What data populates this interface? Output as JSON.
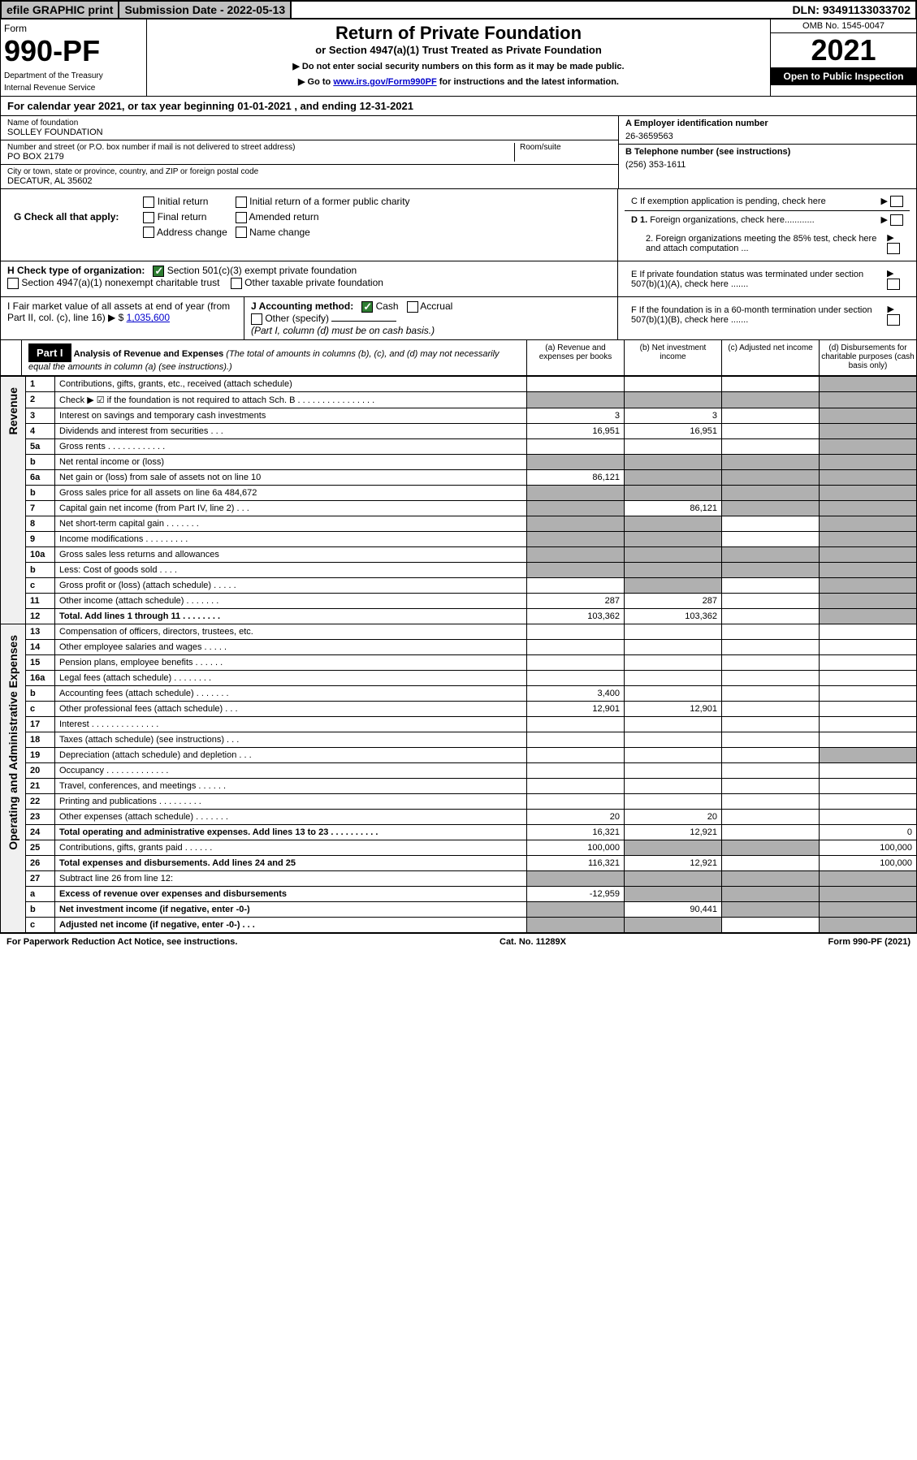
{
  "top": {
    "efile": "efile GRAPHIC print",
    "submission_label": "Submission Date - 2022-05-13",
    "dln": "DLN: 93491133033702"
  },
  "header": {
    "form_label": "Form",
    "form_number": "990-PF",
    "dept1": "Department of the Treasury",
    "dept2": "Internal Revenue Service",
    "title": "Return of Private Foundation",
    "subtitle": "or Section 4947(a)(1) Trust Treated as Private Foundation",
    "note1": "▶ Do not enter social security numbers on this form as it may be made public.",
    "note2_pre": "▶ Go to ",
    "note2_link": "www.irs.gov/Form990PF",
    "note2_post": " for instructions and the latest information.",
    "omb": "OMB No. 1545-0047",
    "year": "2021",
    "inspect": "Open to Public Inspection"
  },
  "cal_year": "For calendar year 2021, or tax year beginning 01-01-2021                    , and ending 12-31-2021",
  "info": {
    "name_lbl": "Name of foundation",
    "name_val": "SOLLEY FOUNDATION",
    "addr_lbl": "Number and street (or P.O. box number if mail is not delivered to street address)",
    "addr_val": "PO BOX 2179",
    "room_lbl": "Room/suite",
    "city_lbl": "City or town, state or province, country, and ZIP or foreign postal code",
    "city_val": "DECATUR, AL  35602",
    "A_lbl": "A Employer identification number",
    "A_val": "26-3659563",
    "B_lbl": "B Telephone number (see instructions)",
    "B_val": "(256) 353-1611",
    "C_lbl": "C If exemption application is pending, check here",
    "D1_lbl": "D 1. Foreign organizations, check here............",
    "D2_lbl": "2. Foreign organizations meeting the 85% test, check here and attach computation ...",
    "E_lbl": "E  If private foundation status was terminated under section 507(b)(1)(A), check here .......",
    "F_lbl": "F  If the foundation is in a 60-month termination under section 507(b)(1)(B), check here ......."
  },
  "G": {
    "label": "G Check all that apply:",
    "opts": [
      "Initial return",
      "Final return",
      "Address change",
      "Initial return of a former public charity",
      "Amended return",
      "Name change"
    ]
  },
  "H": {
    "label": "H Check type of organization:",
    "opt1": "Section 501(c)(3) exempt private foundation",
    "opt2": "Section 4947(a)(1) nonexempt charitable trust",
    "opt3": "Other taxable private foundation"
  },
  "I": {
    "label": "I Fair market value of all assets at end of year (from Part II, col. (c), line 16)",
    "val": "1,035,600"
  },
  "J": {
    "label": "J Accounting method:",
    "cash": "Cash",
    "accrual": "Accrual",
    "other": "Other (specify)",
    "note": "(Part I, column (d) must be on cash basis.)"
  },
  "part1": {
    "label": "Part I",
    "title": "Analysis of Revenue and Expenses",
    "sub": " (The total of amounts in columns (b), (c), and (d) may not necessarily equal the amounts in column (a) (see instructions).)",
    "col_a": "(a)   Revenue and expenses per books",
    "col_b": "(b)   Net investment income",
    "col_c": "(c)   Adjusted net income",
    "col_d": "(d)   Disbursements for charitable purposes (cash basis only)"
  },
  "side_labels": {
    "revenue": "Revenue",
    "expenses": "Operating and Administrative Expenses"
  },
  "rows": [
    {
      "n": "1",
      "d": "Contributions, gifts, grants, etc., received (attach schedule)",
      "a": "",
      "b": "",
      "c": "",
      "dd": "",
      "shade_d": true
    },
    {
      "n": "2",
      "d": "Check ▶ ☑ if the foundation is not required to attach Sch. B     .  .  .  .  .  .  .  .  .  .  .  .  .  .  .  .",
      "a": "",
      "b": "",
      "c": "",
      "dd": "",
      "shade_all": true
    },
    {
      "n": "3",
      "d": "Interest on savings and temporary cash investments",
      "a": "3",
      "b": "3",
      "c": "",
      "dd": "",
      "shade_d": true
    },
    {
      "n": "4",
      "d": "Dividends and interest from securities    .   .   .",
      "a": "16,951",
      "b": "16,951",
      "c": "",
      "dd": "",
      "shade_d": true
    },
    {
      "n": "5a",
      "d": "Gross rents    .   .   .   .   .   .   .   .   .   .   .   .",
      "a": "",
      "b": "",
      "c": "",
      "dd": "",
      "shade_d": true
    },
    {
      "n": "b",
      "d": "Net rental income or (loss)",
      "a": "",
      "b": "",
      "c": "",
      "dd": "",
      "shade_all": true
    },
    {
      "n": "6a",
      "d": "Net gain or (loss) from sale of assets not on line 10",
      "a": "86,121",
      "b": "",
      "c": "",
      "dd": "",
      "shade_bcd": true
    },
    {
      "n": "b",
      "d": "Gross sales price for all assets on line 6a              484,672",
      "a": "",
      "b": "",
      "c": "",
      "dd": "",
      "shade_all": true
    },
    {
      "n": "7",
      "d": "Capital gain net income (from Part IV, line 2)    .   .   .",
      "a": "",
      "b": "86,121",
      "c": "",
      "dd": "",
      "shade_a": true,
      "shade_cd": true
    },
    {
      "n": "8",
      "d": "Net short-term capital gain    .   .   .   .   .   .   .",
      "a": "",
      "b": "",
      "c": "",
      "dd": "",
      "shade_ab": true,
      "shade_d": true
    },
    {
      "n": "9",
      "d": "Income modifications  .   .   .   .   .   .   .   .   .",
      "a": "",
      "b": "",
      "c": "",
      "dd": "",
      "shade_ab": true,
      "shade_d": true
    },
    {
      "n": "10a",
      "d": "Gross sales less returns and allowances",
      "a": "",
      "b": "",
      "c": "",
      "dd": "",
      "shade_all": true
    },
    {
      "n": "b",
      "d": "Less: Cost of goods sold    .   .   .   .",
      "a": "",
      "b": "",
      "c": "",
      "dd": "",
      "shade_all": true
    },
    {
      "n": "c",
      "d": "Gross profit or (loss) (attach schedule)    .   .   .   .   .",
      "a": "",
      "b": "",
      "c": "",
      "dd": "",
      "shade_b": true,
      "shade_d": true
    },
    {
      "n": "11",
      "d": "Other income (attach schedule)    .   .   .   .   .   .   .",
      "a": "287",
      "b": "287",
      "c": "",
      "dd": "",
      "shade_d": true
    },
    {
      "n": "12",
      "d": "Total. Add lines 1 through 11    .   .   .   .   .   .   .   .",
      "a": "103,362",
      "b": "103,362",
      "c": "",
      "dd": "",
      "bold": true,
      "shade_d": true
    },
    {
      "n": "13",
      "d": "Compensation of officers, directors, trustees, etc.",
      "a": "",
      "b": "",
      "c": "",
      "dd": "",
      "sec": "exp"
    },
    {
      "n": "14",
      "d": "Other employee salaries and wages    .   .   .   .   .",
      "a": "",
      "b": "",
      "c": "",
      "dd": ""
    },
    {
      "n": "15",
      "d": "Pension plans, employee benefits  .   .   .   .   .   .",
      "a": "",
      "b": "",
      "c": "",
      "dd": ""
    },
    {
      "n": "16a",
      "d": "Legal fees (attach schedule)  .   .   .   .   .   .   .   .",
      "a": "",
      "b": "",
      "c": "",
      "dd": ""
    },
    {
      "n": "b",
      "d": "Accounting fees (attach schedule)  .   .   .   .   .   .   .",
      "a": "3,400",
      "b": "",
      "c": "",
      "dd": ""
    },
    {
      "n": "c",
      "d": "Other professional fees (attach schedule)     .   .   .",
      "a": "12,901",
      "b": "12,901",
      "c": "",
      "dd": ""
    },
    {
      "n": "17",
      "d": "Interest  .   .   .   .   .   .   .   .   .   .   .   .   .   .",
      "a": "",
      "b": "",
      "c": "",
      "dd": ""
    },
    {
      "n": "18",
      "d": "Taxes (attach schedule) (see instructions)      .   .   .",
      "a": "",
      "b": "",
      "c": "",
      "dd": ""
    },
    {
      "n": "19",
      "d": "Depreciation (attach schedule) and depletion    .   .   .",
      "a": "",
      "b": "",
      "c": "",
      "dd": "",
      "shade_d": true
    },
    {
      "n": "20",
      "d": "Occupancy  .   .   .   .   .   .   .   .   .   .   .   .   .",
      "a": "",
      "b": "",
      "c": "",
      "dd": ""
    },
    {
      "n": "21",
      "d": "Travel, conferences, and meetings  .   .   .   .   .   .",
      "a": "",
      "b": "",
      "c": "",
      "dd": ""
    },
    {
      "n": "22",
      "d": "Printing and publications  .   .   .   .   .   .   .   .   .",
      "a": "",
      "b": "",
      "c": "",
      "dd": ""
    },
    {
      "n": "23",
      "d": "Other expenses (attach schedule)  .   .   .   .   .   .   .",
      "a": "20",
      "b": "20",
      "c": "",
      "dd": ""
    },
    {
      "n": "24",
      "d": "Total operating and administrative expenses. Add lines 13 to 23    .   .   .   .   .   .   .   .   .   .",
      "a": "16,321",
      "b": "12,921",
      "c": "",
      "dd": "0",
      "bold": true
    },
    {
      "n": "25",
      "d": "Contributions, gifts, grants paid     .   .   .   .   .   .",
      "a": "100,000",
      "b": "",
      "c": "",
      "dd": "100,000",
      "shade_bc": true
    },
    {
      "n": "26",
      "d": "Total expenses and disbursements. Add lines 24 and 25",
      "a": "116,321",
      "b": "12,921",
      "c": "",
      "dd": "100,000",
      "bold": true
    },
    {
      "n": "27",
      "d": "Subtract line 26 from line 12:",
      "a": "",
      "b": "",
      "c": "",
      "dd": "",
      "shade_all": true
    },
    {
      "n": "a",
      "d": "Excess of revenue over expenses and disbursements",
      "a": "-12,959",
      "b": "",
      "c": "",
      "dd": "",
      "bold": true,
      "shade_bcd": true
    },
    {
      "n": "b",
      "d": "Net investment income (if negative, enter -0-)",
      "a": "",
      "b": "90,441",
      "c": "",
      "dd": "",
      "bold": true,
      "shade_a": true,
      "shade_cd": true
    },
    {
      "n": "c",
      "d": "Adjusted net income (if negative, enter -0-)    .   .   .",
      "a": "",
      "b": "",
      "c": "",
      "dd": "",
      "bold": true,
      "shade_ab": true,
      "shade_d": true
    }
  ],
  "footer": {
    "left": "For Paperwork Reduction Act Notice, see instructions.",
    "mid": "Cat. No. 11289X",
    "right": "Form 990-PF (2021)"
  }
}
